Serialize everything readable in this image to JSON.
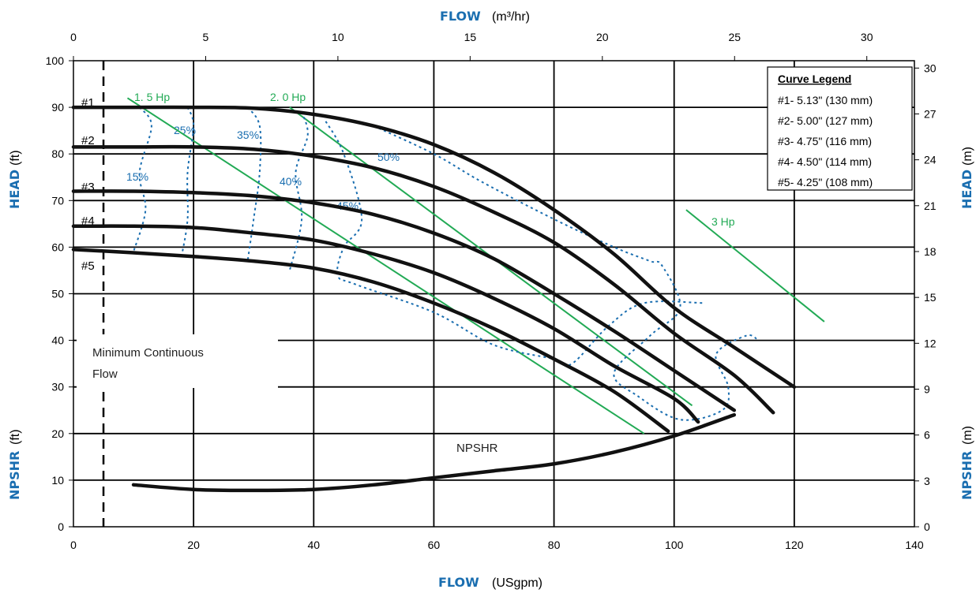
{
  "chart_data": {
    "type": "line",
    "axes": {
      "bottom": {
        "title": "FLOW",
        "unit": "(USgpm)",
        "range": [
          0,
          140
        ],
        "ticks": [
          0,
          20,
          40,
          60,
          80,
          100,
          120,
          140
        ]
      },
      "top": {
        "title": "FLOW",
        "unit": "(m³/hr)",
        "range": [
          0,
          31.8
        ],
        "ticks": [
          0,
          5,
          10,
          15,
          20,
          25,
          30
        ]
      },
      "left_head": {
        "title": "HEAD",
        "unit": "(ft)",
        "range": [
          0,
          100
        ],
        "ticks": [
          30,
          40,
          50,
          60,
          70,
          80,
          90,
          100
        ]
      },
      "left_npshr": {
        "title": "NPSHR",
        "unit": "(ft)",
        "range": [
          0,
          30
        ],
        "ticks": [
          0,
          10,
          20
        ]
      },
      "right_head": {
        "title": "HEAD",
        "unit": "(m)",
        "ticks": [
          9,
          12,
          15,
          18,
          21,
          24,
          27,
          30
        ]
      },
      "right_npshr": {
        "title": "NPSHR",
        "unit": "(m)",
        "ticks": [
          0,
          3,
          6
        ]
      }
    },
    "grid": true,
    "legend": {
      "position": "top-right",
      "title": "Curve Legend",
      "items": [
        "#1- 5.13\"  (130 mm)",
        "#2- 5.00\"  (127 mm)",
        "#3- 4.75\"  (116 mm)",
        "#4- 4.50\"  (114 mm)",
        "#5- 4.25\"  (108 mm)"
      ]
    },
    "series": [
      {
        "name": "#1",
        "points": [
          [
            0,
            90.0
          ],
          [
            10,
            90.0
          ],
          [
            20,
            90.0
          ],
          [
            30,
            89.8
          ],
          [
            40,
            88.5
          ],
          [
            50,
            86.0
          ],
          [
            60,
            82.0
          ],
          [
            70,
            76.0
          ],
          [
            80,
            68.0
          ],
          [
            90,
            58.5
          ],
          [
            100,
            47.0
          ],
          [
            110,
            38.5
          ],
          [
            120,
            30.0
          ]
        ]
      },
      {
        "name": "#2",
        "points": [
          [
            0,
            81.5
          ],
          [
            10,
            81.5
          ],
          [
            20,
            81.5
          ],
          [
            30,
            81.0
          ],
          [
            40,
            79.5
          ],
          [
            50,
            77.0
          ],
          [
            60,
            73.0
          ],
          [
            70,
            67.5
          ],
          [
            80,
            61.0
          ],
          [
            90,
            52.0
          ],
          [
            100,
            41.5
          ],
          [
            110,
            32.5
          ],
          [
            116.5,
            24.5
          ]
        ]
      },
      {
        "name": "#3",
        "points": [
          [
            0,
            72.0
          ],
          [
            10,
            72.0
          ],
          [
            20,
            71.7
          ],
          [
            30,
            71.0
          ],
          [
            40,
            69.5
          ],
          [
            50,
            67.0
          ],
          [
            60,
            63.0
          ],
          [
            70,
            57.5
          ],
          [
            80,
            50.0
          ],
          [
            90,
            42.0
          ],
          [
            100,
            33.5
          ],
          [
            110,
            25.0
          ]
        ]
      },
      {
        "name": "#4",
        "points": [
          [
            0,
            64.5
          ],
          [
            10,
            64.5
          ],
          [
            20,
            64.2
          ],
          [
            30,
            63.0
          ],
          [
            40,
            61.5
          ],
          [
            50,
            58.5
          ],
          [
            60,
            54.5
          ],
          [
            70,
            49.0
          ],
          [
            80,
            42.5
          ],
          [
            90,
            34.5
          ],
          [
            100,
            27.5
          ],
          [
            104,
            22.5
          ]
        ]
      },
      {
        "name": "#5",
        "points": [
          [
            0,
            59.5
          ],
          [
            10,
            58.8
          ],
          [
            20,
            58.0
          ],
          [
            30,
            57.0
          ],
          [
            40,
            55.5
          ],
          [
            50,
            52.5
          ],
          [
            60,
            48.0
          ],
          [
            70,
            42.5
          ],
          [
            80,
            36.0
          ],
          [
            90,
            29.0
          ],
          [
            99,
            20.5
          ]
        ]
      },
      {
        "name": "NPSHR",
        "points": [
          [
            10,
            9.0
          ],
          [
            20,
            8.0
          ],
          [
            30,
            7.8
          ],
          [
            40,
            8.0
          ],
          [
            50,
            9.0
          ],
          [
            60,
            10.5
          ],
          [
            70,
            12.0
          ],
          [
            80,
            13.5
          ],
          [
            90,
            16.0
          ],
          [
            100,
            19.5
          ],
          [
            110,
            24.0
          ]
        ]
      }
    ],
    "horsepower_lines": [
      {
        "label": "1. 5 Hp",
        "points": [
          [
            9,
            92
          ],
          [
            95,
            20
          ]
        ]
      },
      {
        "label": "2. 0 Hp",
        "points": [
          [
            36,
            90
          ],
          [
            103,
            26
          ]
        ]
      },
      {
        "label": "3 Hp",
        "points": [
          [
            102,
            68
          ],
          [
            125,
            44
          ]
        ]
      }
    ],
    "efficiency_labels": [
      "15%",
      "25%",
      "35%",
      "40%",
      "45%",
      "50%"
    ],
    "annotations": {
      "minimum_flow": [
        "Minimum Continuous",
        "Flow"
      ],
      "minimum_flow_gpm": 5,
      "npshr": "NPSHR",
      "curve_labels": [
        "#1",
        "#2",
        "#3",
        "#4",
        "#5"
      ]
    }
  },
  "colors": {
    "curve": "#111111",
    "grid": "#000000",
    "efficiency": "#1a6eb0",
    "horsepower": "#22aa55",
    "axis_title": "#1a6eb0"
  }
}
